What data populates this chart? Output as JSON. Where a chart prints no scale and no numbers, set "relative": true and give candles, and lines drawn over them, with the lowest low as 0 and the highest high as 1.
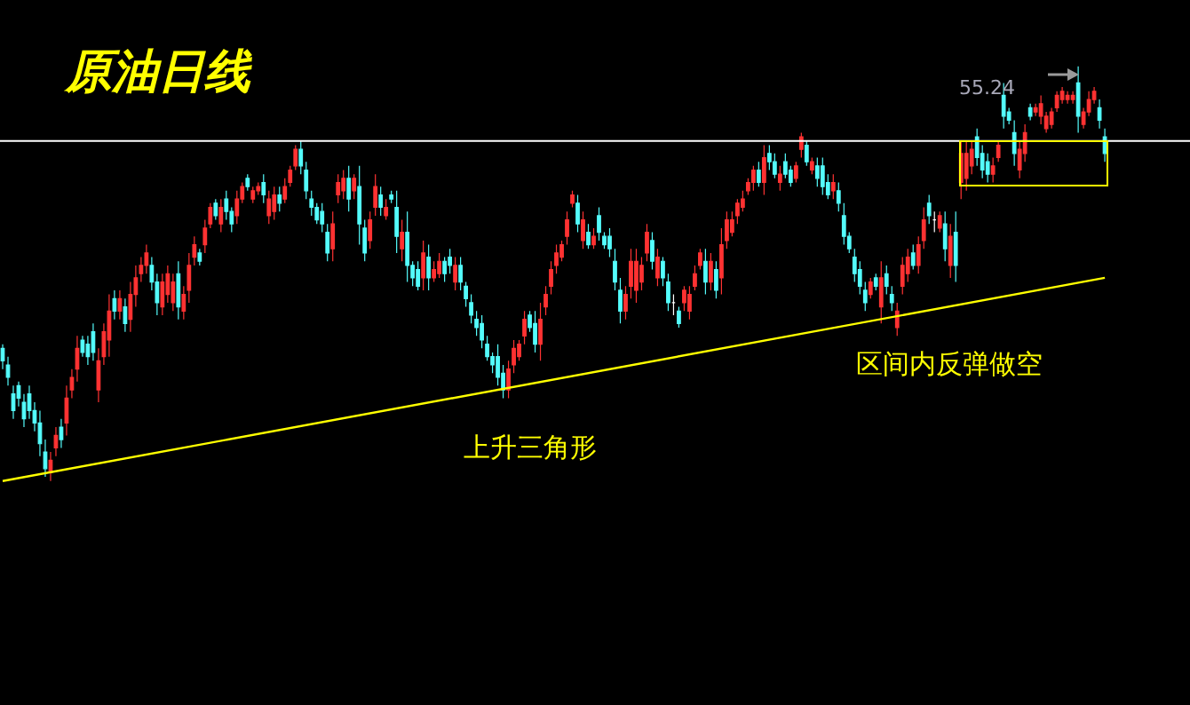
{
  "chart_data": {
    "type": "candlestick",
    "title": "原油日线",
    "relative": true,
    "categories": [
      null,
      null,
      null,
      null,
      null,
      null,
      null,
      null,
      null,
      null,
      null,
      null,
      null,
      null,
      null,
      null,
      null,
      null,
      null,
      null,
      null,
      null,
      null,
      null,
      null,
      null,
      null,
      null,
      null,
      null,
      null,
      null,
      null,
      null,
      null,
      null,
      null,
      null,
      null,
      null,
      null,
      null,
      null,
      null,
      null,
      null,
      null,
      null,
      null,
      null,
      null,
      null,
      null,
      null,
      null,
      null,
      null,
      null,
      null,
      null,
      null,
      null,
      null,
      null,
      null,
      null,
      null,
      null,
      null,
      null,
      null,
      null,
      null,
      null,
      null,
      null,
      null,
      null,
      null,
      null,
      null,
      null,
      null,
      null,
      null,
      null,
      null,
      null,
      null,
      null,
      null,
      null,
      null,
      null,
      null,
      null,
      null,
      null,
      null,
      null,
      null,
      null,
      null,
      null,
      null,
      null,
      null,
      null,
      null,
      null,
      null,
      null,
      null,
      null,
      null,
      null,
      null,
      null,
      null,
      null,
      null,
      null,
      null,
      null,
      null,
      null,
      null,
      null,
      null,
      null,
      null,
      null,
      null,
      null,
      null,
      null,
      null,
      null,
      null,
      null,
      null,
      null,
      null,
      null,
      null,
      null,
      null,
      null,
      null,
      null,
      null,
      null,
      null,
      null,
      null,
      null,
      null,
      null,
      null,
      null,
      null,
      null,
      null,
      null,
      null,
      null,
      null,
      null,
      null,
      null,
      null,
      null,
      null,
      null,
      null,
      null,
      null,
      null,
      null,
      null,
      null,
      null,
      null,
      null,
      null,
      null,
      null,
      null,
      null,
      null,
      null,
      null,
      null,
      null,
      null,
      null,
      null,
      null,
      null,
      null,
      null,
      null,
      null,
      null,
      null,
      null,
      null,
      null
    ],
    "ohlc": [
      [
        0.32,
        0.33,
        0.27,
        0.29
      ],
      [
        0.28,
        0.3,
        0.23,
        0.25
      ],
      [
        0.21,
        0.23,
        0.15,
        0.17
      ],
      [
        0.23,
        0.24,
        0.18,
        0.2
      ],
      [
        0.19,
        0.21,
        0.13,
        0.15
      ],
      [
        0.21,
        0.23,
        0.15,
        0.17
      ],
      [
        0.17,
        0.19,
        0.12,
        0.14
      ],
      [
        0.14,
        0.17,
        0.06,
        0.09
      ],
      [
        0.07,
        0.1,
        0.01,
        0.03
      ],
      [
        0.02,
        0.07,
        0,
        0.05
      ],
      [
        0.08,
        0.13,
        0.06,
        0.11
      ],
      [
        0.13,
        0.15,
        0.08,
        0.1
      ],
      [
        0.14,
        0.23,
        0.11,
        0.2
      ],
      [
        0.22,
        0.27,
        0.2,
        0.25
      ],
      [
        0.27,
        0.35,
        0.24,
        0.32
      ],
      [
        0.34,
        0.35,
        0.3,
        0.31
      ],
      [
        0.33,
        0.35,
        0.28,
        0.3
      ],
      [
        0.36,
        0.38,
        0.29,
        0.31
      ],
      [
        0.22,
        0.32,
        0.19,
        0.29
      ],
      [
        0.3,
        0.38,
        0.28,
        0.36
      ],
      [
        0.34,
        0.45,
        0.3,
        0.41
      ],
      [
        0.44,
        0.46,
        0.39,
        0.41
      ],
      [
        0.41,
        0.46,
        0.39,
        0.44
      ],
      [
        0.42,
        0.44,
        0.36,
        0.38
      ],
      [
        0.39,
        0.48,
        0.36,
        0.45
      ],
      [
        0.45,
        0.52,
        0.42,
        0.49
      ],
      [
        0.5,
        0.54,
        0.48,
        0.52
      ],
      [
        0.52,
        0.57,
        0.5,
        0.55
      ],
      [
        0.52,
        0.54,
        0.46,
        0.48
      ],
      [
        0.48,
        0.5,
        0.4,
        0.43
      ],
      [
        0.42,
        0.5,
        0.4,
        0.48
      ],
      [
        0.45,
        0.52,
        0.43,
        0.5
      ],
      [
        0.43,
        0.5,
        0.41,
        0.48
      ],
      [
        0.5,
        0.53,
        0.39,
        0.42
      ],
      [
        0.41,
        0.47,
        0.39,
        0.45
      ],
      [
        0.46,
        0.55,
        0.43,
        0.52
      ],
      [
        0.54,
        0.59,
        0.52,
        0.57
      ],
      [
        0.55,
        0.56,
        0.52,
        0.53
      ],
      [
        0.57,
        0.63,
        0.55,
        0.61
      ],
      [
        0.62,
        0.67,
        0.61,
        0.66
      ],
      [
        0.67,
        0.68,
        0.63,
        0.64
      ],
      [
        0.62,
        0.68,
        0.6,
        0.66
      ],
      [
        0.68,
        0.7,
        0.63,
        0.65
      ],
      [
        0.65,
        0.66,
        0.6,
        0.62
      ],
      [
        0.64,
        0.7,
        0.62,
        0.68
      ],
      [
        0.68,
        0.72,
        0.67,
        0.71
      ],
      [
        0.73,
        0.74,
        0.7,
        0.71
      ],
      [
        0.68,
        0.71,
        0.67,
        0.7
      ],
      [
        0.7,
        0.72,
        0.69,
        0.71
      ],
      [
        0.72,
        0.74,
        0.67,
        0.69
      ],
      [
        0.64,
        0.7,
        0.62,
        0.68
      ],
      [
        0.65,
        0.71,
        0.63,
        0.69
      ],
      [
        0.69,
        0.71,
        0.65,
        0.67
      ],
      [
        0.68,
        0.73,
        0.67,
        0.71
      ],
      [
        0.72,
        0.76,
        0.71,
        0.75
      ],
      [
        0.76,
        0.81,
        0.75,
        0.8
      ],
      [
        0.8,
        0.82,
        0.74,
        0.76
      ],
      [
        0.75,
        0.77,
        0.68,
        0.7
      ],
      [
        0.68,
        0.7,
        0.64,
        0.66
      ],
      [
        0.66,
        0.67,
        0.62,
        0.63
      ],
      [
        0.65,
        0.67,
        0.6,
        0.62
      ],
      [
        0.6,
        0.62,
        0.53,
        0.55
      ],
      [
        0.56,
        0.65,
        0.53,
        0.62
      ],
      [
        0.69,
        0.74,
        0.67,
        0.72
      ],
      [
        0.7,
        0.75,
        0.68,
        0.73
      ],
      [
        0.73,
        0.76,
        0.65,
        0.68
      ],
      [
        0.7,
        0.74,
        0.68,
        0.73
      ],
      [
        0.71,
        0.76,
        0.57,
        0.62
      ],
      [
        0.61,
        0.63,
        0.53,
        0.55
      ],
      [
        0.58,
        0.65,
        0.56,
        0.63
      ],
      [
        0.66,
        0.74,
        0.64,
        0.71
      ],
      [
        0.69,
        0.71,
        0.64,
        0.66
      ],
      [
        0.64,
        0.68,
        0.63,
        0.66
      ],
      [
        0.69,
        0.7,
        0.67,
        0.68
      ],
      [
        0.66,
        0.7,
        0.55,
        0.59
      ],
      [
        0.56,
        0.63,
        0.53,
        0.6
      ],
      [
        0.6,
        0.65,
        0.48,
        0.52
      ],
      [
        0.52,
        0.53,
        0.47,
        0.49
      ],
      [
        0.51,
        0.53,
        0.46,
        0.47
      ],
      [
        0.49,
        0.58,
        0.46,
        0.55
      ],
      [
        0.54,
        0.57,
        0.46,
        0.49
      ],
      [
        0.49,
        0.53,
        0.48,
        0.51
      ],
      [
        0.5,
        0.55,
        0.49,
        0.53
      ],
      [
        0.53,
        0.54,
        0.48,
        0.5
      ],
      [
        0.54,
        0.56,
        0.5,
        0.52
      ],
      [
        0.48,
        0.54,
        0.46,
        0.52
      ],
      [
        0.52,
        0.54,
        0.46,
        0.48
      ],
      [
        0.47,
        0.48,
        0.42,
        0.44
      ],
      [
        0.43,
        0.45,
        0.38,
        0.4
      ],
      [
        0.39,
        0.41,
        0.35,
        0.37
      ],
      [
        0.38,
        0.4,
        0.32,
        0.34
      ],
      [
        0.33,
        0.35,
        0.29,
        0.3
      ],
      [
        0.3,
        0.31,
        0.26,
        0.28
      ],
      [
        0.3,
        0.33,
        0.23,
        0.25
      ],
      [
        0.26,
        0.28,
        0.2,
        0.22
      ],
      [
        0.22,
        0.29,
        0.2,
        0.27
      ],
      [
        0.28,
        0.34,
        0.26,
        0.32
      ],
      [
        0.3,
        0.34,
        0.29,
        0.33
      ],
      [
        0.35,
        0.41,
        0.33,
        0.39
      ],
      [
        0.4,
        0.41,
        0.36,
        0.37
      ],
      [
        0.38,
        0.41,
        0.31,
        0.33
      ],
      [
        0.33,
        0.43,
        0.29,
        0.39
      ],
      [
        0.42,
        0.47,
        0.4,
        0.45
      ],
      [
        0.47,
        0.53,
        0.45,
        0.51
      ],
      [
        0.52,
        0.57,
        0.5,
        0.55
      ],
      [
        0.54,
        0.58,
        0.53,
        0.57
      ],
      [
        0.59,
        0.65,
        0.57,
        0.63
      ],
      [
        0.67,
        0.7,
        0.66,
        0.69
      ],
      [
        0.67,
        0.69,
        0.6,
        0.62
      ],
      [
        0.58,
        0.65,
        0.56,
        0.63
      ],
      [
        0.6,
        0.62,
        0.56,
        0.57
      ],
      [
        0.57,
        0.61,
        0.56,
        0.59
      ],
      [
        0.64,
        0.66,
        0.58,
        0.6
      ],
      [
        0.59,
        0.6,
        0.56,
        0.57
      ],
      [
        0.59,
        0.61,
        0.54,
        0.56
      ],
      [
        0.53,
        0.56,
        0.46,
        0.48
      ],
      [
        0.46,
        0.49,
        0.38,
        0.41
      ],
      [
        0.41,
        0.47,
        0.39,
        0.45
      ],
      [
        0.47,
        0.56,
        0.44,
        0.53
      ],
      [
        0.46,
        0.56,
        0.43,
        0.53
      ],
      [
        0.48,
        0.54,
        0.46,
        0.52
      ],
      [
        0.55,
        0.62,
        0.53,
        0.6
      ],
      [
        0.58,
        0.6,
        0.51,
        0.53
      ],
      [
        0.49,
        0.56,
        0.47,
        0.54
      ],
      [
        0.53,
        0.54,
        0.47,
        0.49
      ],
      [
        0.48,
        0.5,
        0.41,
        0.43
      ],
      [
        0.43,
        0.45,
        0.4,
        0.43
      ],
      [
        0.41,
        0.42,
        0.37,
        0.38
      ],
      [
        0.43,
        0.47,
        0.41,
        0.46
      ],
      [
        0.41,
        0.47,
        0.39,
        0.45
      ],
      [
        0.47,
        0.52,
        0.46,
        0.5
      ],
      [
        0.52,
        0.56,
        0.51,
        0.55
      ],
      [
        0.53,
        0.56,
        0.45,
        0.48
      ],
      [
        0.48,
        0.55,
        0.46,
        0.53
      ],
      [
        0.51,
        0.53,
        0.44,
        0.46
      ],
      [
        0.49,
        0.61,
        0.45,
        0.57
      ],
      [
        0.58,
        0.65,
        0.56,
        0.63
      ],
      [
        0.6,
        0.65,
        0.59,
        0.63
      ],
      [
        0.64,
        0.68,
        0.62,
        0.67
      ],
      [
        0.66,
        0.7,
        0.65,
        0.68
      ],
      [
        0.7,
        0.73,
        0.69,
        0.72
      ],
      [
        0.72,
        0.76,
        0.7,
        0.75
      ],
      [
        0.75,
        0.77,
        0.71,
        0.72
      ],
      [
        0.72,
        0.81,
        0.69,
        0.78
      ],
      [
        0.79,
        0.81,
        0.75,
        0.77
      ],
      [
        0.77,
        0.79,
        0.73,
        0.74
      ],
      [
        0.72,
        0.76,
        0.7,
        0.74
      ],
      [
        0.77,
        0.79,
        0.73,
        0.74
      ],
      [
        0.75,
        0.76,
        0.71,
        0.72
      ],
      [
        0.73,
        0.77,
        0.72,
        0.76
      ],
      [
        0.8,
        0.84,
        0.78,
        0.83
      ],
      [
        0.81,
        0.82,
        0.76,
        0.77
      ],
      [
        0.75,
        0.78,
        0.74,
        0.77
      ],
      [
        0.76,
        0.78,
        0.71,
        0.73
      ],
      [
        0.76,
        0.78,
        0.69,
        0.71
      ],
      [
        0.72,
        0.74,
        0.68,
        0.69
      ],
      [
        0.7,
        0.74,
        0.68,
        0.72
      ],
      [
        0.7,
        0.72,
        0.65,
        0.67
      ],
      [
        0.64,
        0.67,
        0.57,
        0.59
      ],
      [
        0.59,
        0.6,
        0.55,
        0.56
      ],
      [
        0.54,
        0.56,
        0.48,
        0.5
      ],
      [
        0.51,
        0.53,
        0.45,
        0.47
      ],
      [
        0.46,
        0.48,
        0.41,
        0.43
      ],
      [
        0.45,
        0.49,
        0.44,
        0.48
      ],
      [
        0.49,
        0.5,
        0.46,
        0.47
      ],
      [
        0.42,
        0.53,
        0.38,
        0.49
      ],
      [
        0.5,
        0.52,
        0.45,
        0.47
      ],
      [
        0.45,
        0.47,
        0.41,
        0.43
      ],
      [
        0.37,
        0.43,
        0.35,
        0.41
      ],
      [
        0.47,
        0.54,
        0.45,
        0.52
      ],
      [
        0.5,
        0.56,
        0.48,
        0.54
      ],
      [
        0.55,
        0.57,
        0.51,
        0.52
      ],
      [
        0.52,
        0.59,
        0.5,
        0.57
      ],
      [
        0.58,
        0.66,
        0.56,
        0.63
      ],
      [
        0.67,
        0.69,
        0.62,
        0.64
      ],
      [
        0.63,
        0.65,
        0.6,
        0.63
      ],
      [
        0.61,
        0.65,
        0.6,
        0.64
      ],
      [
        0.62,
        0.65,
        0.53,
        0.56
      ],
      [
        0.52,
        0.62,
        0.49,
        0.59
      ],
      [
        0.6,
        0.65,
        0.48,
        0.52
      ],
      [
        0.72,
        0.82,
        0.68,
        0.79
      ],
      [
        0.73,
        0.82,
        0.7,
        0.79
      ],
      [
        0.76,
        0.82,
        0.74,
        0.8
      ],
      [
        0.83,
        0.85,
        0.76,
        0.78
      ],
      [
        0.79,
        0.81,
        0.73,
        0.75
      ],
      [
        0.77,
        0.79,
        0.72,
        0.74
      ],
      [
        0.74,
        0.78,
        0.72,
        0.76
      ],
      [
        0.78,
        0.82,
        0.77,
        0.81
      ],
      [
        0.93,
        0.96,
        0.85,
        0.88
      ],
      [
        0.89,
        0.9,
        0.86,
        0.87
      ],
      [
        0.84,
        0.87,
        0.76,
        0.79
      ],
      [
        0.75,
        0.82,
        0.73,
        0.8
      ],
      [
        0.79,
        0.86,
        0.77,
        0.84
      ],
      [
        0.9,
        0.91,
        0.87,
        0.88
      ],
      [
        0.89,
        0.91,
        0.88,
        0.9
      ],
      [
        0.88,
        0.93,
        0.86,
        0.91
      ],
      [
        0.85,
        0.89,
        0.84,
        0.88
      ],
      [
        0.86,
        0.9,
        0.85,
        0.89
      ],
      [
        0.9,
        0.94,
        0.89,
        0.93
      ],
      [
        0.92,
        0.95,
        0.91,
        0.94
      ],
      [
        0.92,
        0.94,
        0.91,
        0.93
      ],
      [
        0.92,
        0.94,
        0.91,
        0.93
      ],
      [
        0.96,
        1,
        0.84,
        0.88
      ],
      [
        0.86,
        0.9,
        0.85,
        0.89
      ],
      [
        0.89,
        0.94,
        0.88,
        0.92
      ],
      [
        0.92,
        0.95,
        0.91,
        0.94
      ],
      [
        0.9,
        0.92,
        0.85,
        0.87
      ],
      [
        0.83,
        0.85,
        0.77,
        0.79
      ]
    ],
    "colors": [
      "#54fcfc",
      "#54fcfc",
      "#54fcfc",
      "#54fcfc",
      "#54fcfc",
      "#54fcfc",
      "#54fcfc",
      "#54fcfc",
      "#54fcfc",
      "#ff3232",
      "#ff3232",
      "#54fcfc",
      "#ff3232",
      "#ff3232",
      "#ff3232",
      "#54fcfc",
      "#54fcfc",
      "#54fcfc",
      "#ff3232",
      "#ff3232",
      "#ff3232",
      "#54fcfc",
      "#ff3232",
      "#54fcfc",
      "#ff3232",
      "#ff3232",
      "#ff3232",
      "#ff3232",
      "#54fcfc",
      "#54fcfc",
      "#ff3232",
      "#ff3232",
      "#ff3232",
      "#54fcfc",
      "#ff3232",
      "#ff3232",
      "#ff3232",
      "#54fcfc",
      "#ff3232",
      "#ff3232",
      "#54fcfc",
      "#ff3232",
      "#54fcfc",
      "#54fcfc",
      "#ff3232",
      "#ff3232",
      "#54fcfc",
      "#ff3232",
      "#ff3232",
      "#54fcfc",
      "#ff3232",
      "#ff3232",
      "#54fcfc",
      "#ff3232",
      "#ff3232",
      "#ff3232",
      "#54fcfc",
      "#54fcfc",
      "#54fcfc",
      "#54fcfc",
      "#54fcfc",
      "#54fcfc",
      "#ff3232",
      "#ff3232",
      "#ff3232",
      "#54fcfc",
      "#ff3232",
      "#54fcfc",
      "#54fcfc",
      "#ff3232",
      "#ff3232",
      "#54fcfc",
      "#ff3232",
      "#54fcfc",
      "#54fcfc",
      "#ff3232",
      "#54fcfc",
      "#54fcfc",
      "#54fcfc",
      "#ff3232",
      "#54fcfc",
      "#ff3232",
      "#ff3232",
      "#54fcfc",
      "#54fcfc",
      "#ff3232",
      "#54fcfc",
      "#54fcfc",
      "#54fcfc",
      "#54fcfc",
      "#54fcfc",
      "#54fcfc",
      "#54fcfc",
      "#54fcfc",
      "#54fcfc",
      "#ff3232",
      "#ff3232",
      "#ff3232",
      "#ff3232",
      "#54fcfc",
      "#54fcfc",
      "#ff3232",
      "#ff3232",
      "#ff3232",
      "#ff3232",
      "#ff3232",
      "#ff3232",
      "#ff3232",
      "#54fcfc",
      "#ff3232",
      "#54fcfc",
      "#ff3232",
      "#54fcfc",
      "#54fcfc",
      "#54fcfc",
      "#54fcfc",
      "#54fcfc",
      "#ff3232",
      "#ff3232",
      "#ff3232",
      "#ff3232",
      "#ff3232",
      "#54fcfc",
      "#ff3232",
      "#54fcfc",
      "#54fcfc",
      "#ffffff",
      "#54fcfc",
      "#ff3232",
      "#ff3232",
      "#ff3232",
      "#ff3232",
      "#54fcfc",
      "#ff3232",
      "#54fcfc",
      "#ff3232",
      "#ff3232",
      "#ff3232",
      "#ff3232",
      "#ff3232",
      "#ff3232",
      "#ff3232",
      "#54fcfc",
      "#ff3232",
      "#54fcfc",
      "#54fcfc",
      "#ff3232",
      "#54fcfc",
      "#54fcfc",
      "#ff3232",
      "#ff3232",
      "#54fcfc",
      "#ff3232",
      "#54fcfc",
      "#54fcfc",
      "#54fcfc",
      "#ff3232",
      "#54fcfc",
      "#54fcfc",
      "#54fcfc",
      "#54fcfc",
      "#54fcfc",
      "#54fcfc",
      "#ff3232",
      "#54fcfc",
      "#ff3232",
      "#54fcfc",
      "#54fcfc",
      "#ff3232",
      "#ff3232",
      "#ff3232",
      "#54fcfc",
      "#ff3232",
      "#ff3232",
      "#54fcfc",
      "#ffffff",
      "#ff3232",
      "#54fcfc",
      "#ff3232",
      "#54fcfc",
      "#ff3232",
      "#ff3232",
      "#ff3232",
      "#54fcfc",
      "#54fcfc",
      "#54fcfc",
      "#ff3232",
      "#ff3232",
      "#54fcfc",
      "#54fcfc",
      "#54fcfc",
      "#ff3232",
      "#ff3232",
      "#54fcfc",
      "#ff3232",
      "#ff3232",
      "#ff3232",
      "#ff3232",
      "#ff3232",
      "#ff3232",
      "#ff3232",
      "#ff3232",
      "#54fcfc",
      "#ff3232",
      "#ff3232",
      "#ff3232",
      "#54fcfc",
      "#54fcfc"
    ],
    "series": [
      {
        "type": "line",
        "color": "#ffff00",
        "values": [
          0,
          null,
          null,
          null,
          null,
          null,
          null,
          null,
          null,
          null,
          null,
          null,
          null,
          null,
          null,
          null,
          null,
          null,
          null,
          null,
          null,
          null,
          null,
          null,
          null,
          null,
          null,
          null,
          null,
          null,
          null,
          null,
          null,
          null,
          null,
          null,
          null,
          null,
          null,
          null,
          null,
          null,
          null,
          null,
          null,
          null,
          null,
          null,
          null,
          null,
          null,
          null,
          null,
          null,
          null,
          null,
          null,
          null,
          null,
          null,
          null,
          null,
          null,
          null,
          null,
          null,
          null,
          null,
          null,
          null,
          null,
          null,
          null,
          null,
          null,
          null,
          null,
          null,
          null,
          null,
          null,
          null,
          null,
          null,
          null,
          null,
          null,
          null,
          null,
          null,
          null,
          null,
          null,
          null,
          null,
          null,
          null,
          null,
          null,
          null,
          null,
          null,
          null,
          null,
          null,
          null,
          null,
          null,
          null,
          null,
          null,
          null,
          null,
          null,
          null,
          null,
          null,
          null,
          null,
          null,
          null,
          null,
          null,
          null,
          null,
          null,
          null,
          null,
          null,
          null,
          null,
          null,
          null,
          null,
          null,
          null,
          null,
          null,
          null,
          null,
          null,
          null,
          null,
          null,
          null,
          null,
          null,
          null,
          null,
          null,
          null,
          null,
          null,
          null,
          null,
          null,
          null,
          null,
          null,
          null,
          null,
          null,
          null,
          null,
          null,
          null,
          null,
          null,
          null,
          null,
          null,
          null,
          null,
          null,
          null,
          null,
          null,
          null,
          null,
          null,
          null,
          null,
          null,
          null,
          null,
          null,
          null,
          null,
          null,
          null,
          null,
          null,
          null,
          null,
          null,
          null,
          null,
          null,
          null,
          null,
          null,
          null,
          null,
          null,
          null,
          null,
          null,
          0.49
        ]
      }
    ],
    "ref_lines": [
      {
        "axis": "y",
        "value": 0.82,
        "color": "#ffffff"
      }
    ],
    "annotations": [
      "55.24",
      "上升三角形",
      "区间内反弹做空"
    ]
  }
}
